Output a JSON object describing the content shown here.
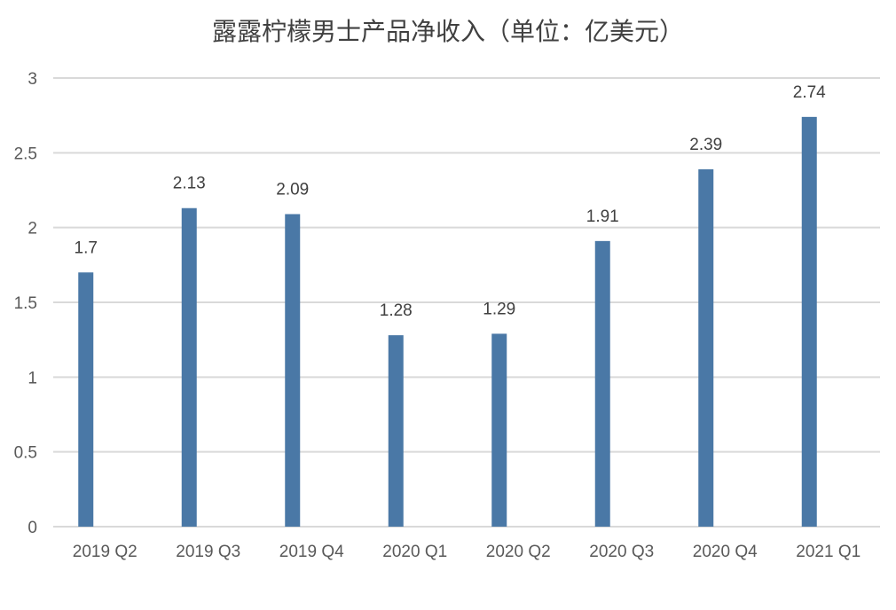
{
  "chart_data": {
    "type": "bar",
    "title": "露露柠檬男士产品净收入（单位：亿美元）",
    "xlabel": "",
    "ylabel": "",
    "categories": [
      "2019 Q2",
      "2019 Q3",
      "2019 Q4",
      "2020 Q1",
      "2020 Q2",
      "2020 Q3",
      "2020 Q4",
      "2021 Q1"
    ],
    "values": [
      1.7,
      2.13,
      2.09,
      1.28,
      1.29,
      1.91,
      2.39,
      2.74
    ],
    "data_labels": [
      "1.7",
      "2.13",
      "2.09",
      "1.28",
      "1.29",
      "1.91",
      "2.39",
      "2.74"
    ],
    "ylim": [
      0,
      3
    ],
    "yticks": [
      "0",
      "0.5",
      "1",
      "1.5",
      "2",
      "2.5",
      "3"
    ],
    "ytick_values": [
      0,
      0.5,
      1,
      1.5,
      2,
      2.5,
      3
    ],
    "grid": true,
    "legend": "none",
    "bar_color": "#4a78a6",
    "grid_color": "#d9d9d9"
  }
}
